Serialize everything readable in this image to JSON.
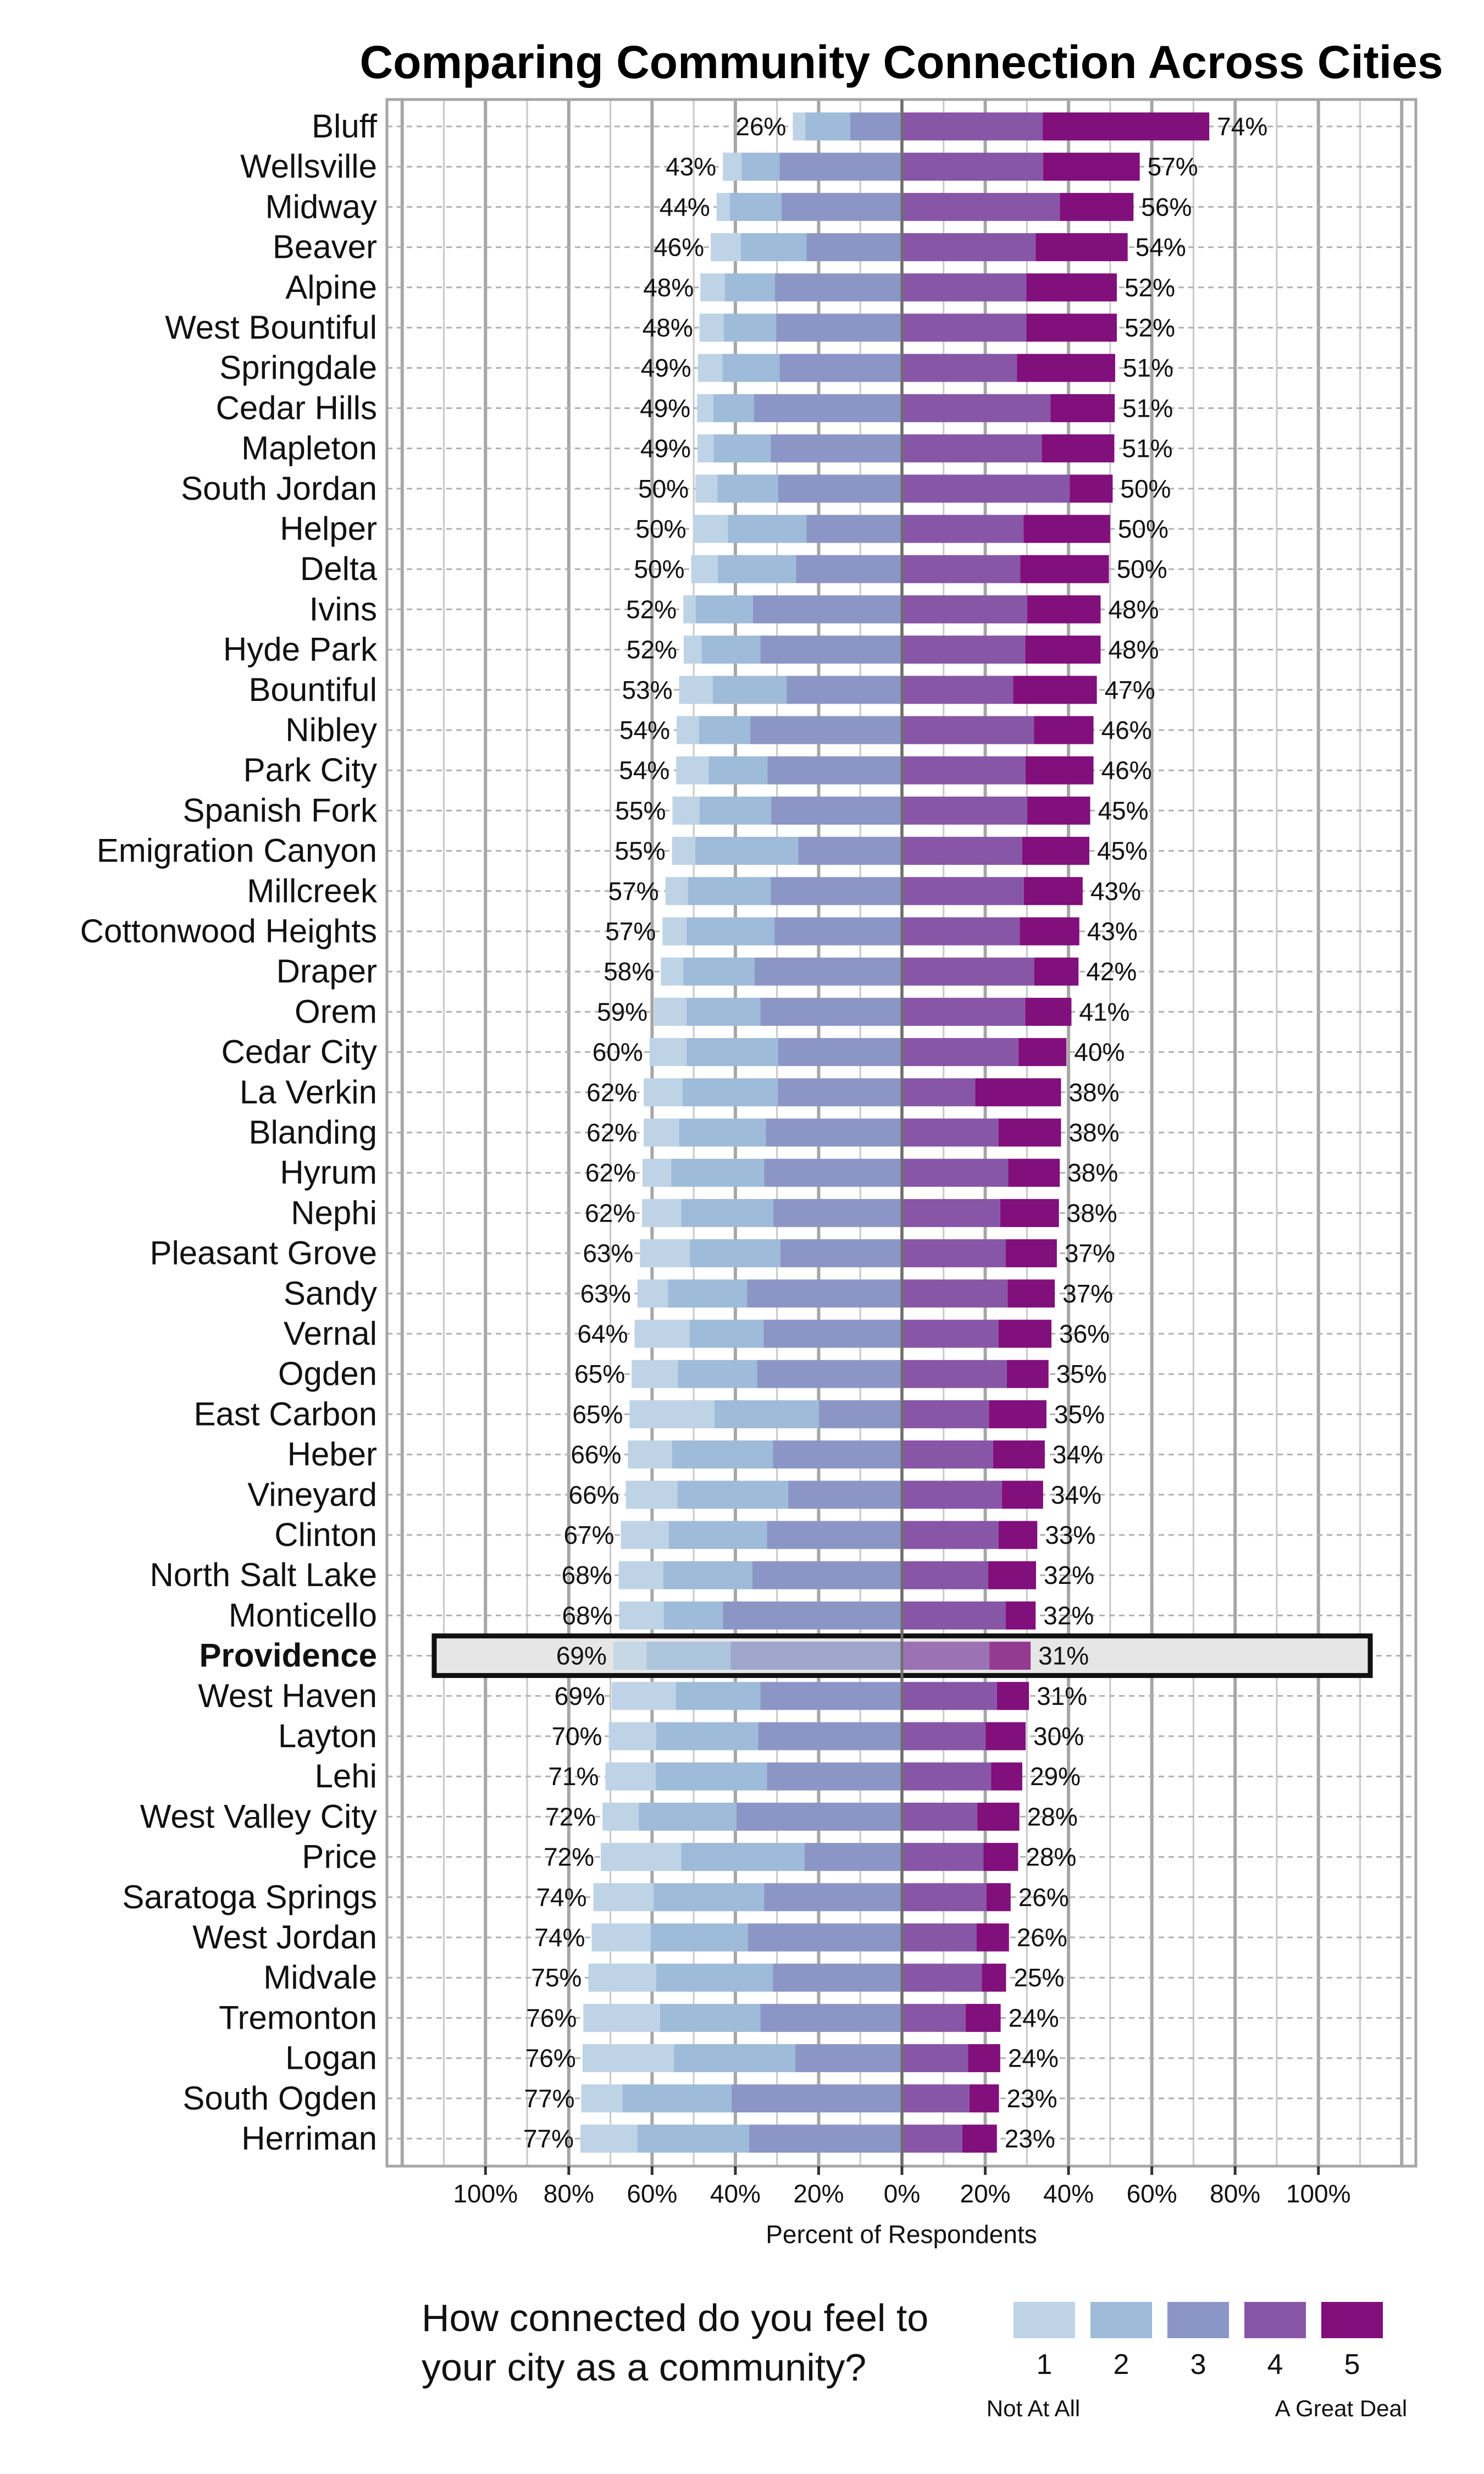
{
  "chart_data": {
    "type": "bar",
    "orientation": "horizontal-diverging-stacked",
    "title": "Comparing Community Connection Across Cities",
    "xlabel": "Percent of Respondents",
    "ylabel": "",
    "xlim": [
      -100,
      100
    ],
    "x_ticks": [
      "100%",
      "80%",
      "60%",
      "40%",
      "20%",
      "0%",
      "20%",
      "40%",
      "60%",
      "80%",
      "100%"
    ],
    "x_tick_values": [
      -100,
      -80,
      -60,
      -40,
      -20,
      0,
      20,
      40,
      60,
      80,
      100
    ],
    "grid": true,
    "legend": {
      "position": "bottom",
      "question_lines": [
        "How connected do you feel to",
        "your city as a community?"
      ],
      "levels": [
        "1",
        "2",
        "3",
        "4",
        "5"
      ],
      "low_anchor": "Not At All",
      "high_anchor": "A Great Deal"
    },
    "colors": [
      "#bed3e6",
      "#9ebbd9",
      "#8c96c6",
      "#8856a7",
      "#810f7c"
    ],
    "highlight": {
      "city": "Providence",
      "box_fill": "#e6e6e6",
      "box_stroke": "#111111"
    },
    "series_note_levels": [
      "1",
      "2",
      "3",
      "4",
      "5"
    ],
    "rows": [
      {
        "city": "Bluff",
        "values": [
          3.0,
          10.8,
          12.4,
          33.8,
          40.0
        ],
        "neg_label": "26%",
        "pos_label": "74%"
      },
      {
        "city": "Wellsville",
        "values": [
          4.5,
          9.1,
          29.4,
          33.9,
          23.2
        ],
        "neg_label": "43%",
        "pos_label": "57%"
      },
      {
        "city": "Midway",
        "values": [
          3.2,
          12.4,
          28.9,
          37.9,
          17.7
        ],
        "neg_label": "44%",
        "pos_label": "56%"
      },
      {
        "city": "Beaver",
        "values": [
          7.2,
          15.8,
          22.9,
          32.1,
          22.1
        ],
        "neg_label": "46%",
        "pos_label": "54%"
      },
      {
        "city": "Alpine",
        "values": [
          5.9,
          12.0,
          30.5,
          29.9,
          21.7
        ],
        "neg_label": "48%",
        "pos_label": "52%"
      },
      {
        "city": "West Bountiful",
        "values": [
          5.8,
          12.6,
          30.2,
          29.9,
          21.7
        ],
        "neg_label": "48%",
        "pos_label": "52%"
      },
      {
        "city": "Springdale",
        "values": [
          5.9,
          13.7,
          29.4,
          27.6,
          23.6
        ],
        "neg_label": "49%",
        "pos_label": "51%"
      },
      {
        "city": "Cedar Hills",
        "values": [
          3.9,
          9.8,
          35.5,
          35.7,
          15.4
        ],
        "neg_label": "49%",
        "pos_label": "51%"
      },
      {
        "city": "Mapleton",
        "values": [
          3.9,
          13.7,
          31.5,
          33.6,
          17.4
        ],
        "neg_label": "49%",
        "pos_label": "51%"
      },
      {
        "city": "South Jordan",
        "values": [
          5.3,
          14.6,
          29.7,
          40.3,
          10.3
        ],
        "neg_label": "50%",
        "pos_label": "50%"
      },
      {
        "city": "Helper",
        "values": [
          8.4,
          18.9,
          22.9,
          29.2,
          20.8
        ],
        "neg_label": "50%",
        "pos_label": "50%"
      },
      {
        "city": "Delta",
        "values": [
          6.4,
          18.8,
          25.4,
          28.4,
          21.3
        ],
        "neg_label": "50%",
        "pos_label": "50%"
      },
      {
        "city": "Ivins",
        "values": [
          3.0,
          13.7,
          35.8,
          30.1,
          17.6
        ],
        "neg_label": "52%",
        "pos_label": "48%"
      },
      {
        "city": "Hyde Park",
        "values": [
          4.3,
          14.1,
          34.0,
          29.6,
          18.1
        ],
        "neg_label": "52%",
        "pos_label": "48%"
      },
      {
        "city": "Bountiful",
        "values": [
          8.1,
          17.7,
          27.7,
          26.7,
          20.1
        ],
        "neg_label": "53%",
        "pos_label": "47%"
      },
      {
        "city": "Nibley",
        "values": [
          5.4,
          12.3,
          36.4,
          31.7,
          14.3
        ],
        "neg_label": "54%",
        "pos_label": "46%"
      },
      {
        "city": "Park City",
        "values": [
          7.8,
          14.1,
          32.3,
          29.7,
          16.3
        ],
        "neg_label": "54%",
        "pos_label": "46%"
      },
      {
        "city": "Spanish Fork",
        "values": [
          6.5,
          17.2,
          31.4,
          30.1,
          15.1
        ],
        "neg_label": "55%",
        "pos_label": "45%"
      },
      {
        "city": "Emigration Canyon",
        "values": [
          5.6,
          24.7,
          24.9,
          28.9,
          16.1
        ],
        "neg_label": "55%",
        "pos_label": "45%"
      },
      {
        "city": "Millcreek",
        "values": [
          5.4,
          19.9,
          31.5,
          29.3,
          14.1
        ],
        "neg_label": "57%",
        "pos_label": "43%"
      },
      {
        "city": "Cottonwood Heights",
        "values": [
          5.8,
          21.1,
          30.6,
          28.3,
          14.3
        ],
        "neg_label": "57%",
        "pos_label": "43%"
      },
      {
        "city": "Draper",
        "values": [
          5.4,
          17.1,
          35.4,
          31.8,
          10.6
        ],
        "neg_label": "58%",
        "pos_label": "42%"
      },
      {
        "city": "Orem",
        "values": [
          7.8,
          17.7,
          34.0,
          29.6,
          11.1
        ],
        "neg_label": "59%",
        "pos_label": "41%"
      },
      {
        "city": "Cedar City",
        "values": [
          8.9,
          22.0,
          29.7,
          28.0,
          11.5
        ],
        "neg_label": "60%",
        "pos_label": "40%"
      },
      {
        "city": "La Verkin",
        "values": [
          9.3,
          22.9,
          29.8,
          17.6,
          20.6
        ],
        "neg_label": "62%",
        "pos_label": "38%"
      },
      {
        "city": "Blanding",
        "values": [
          8.5,
          20.8,
          32.7,
          23.2,
          15.0
        ],
        "neg_label": "62%",
        "pos_label": "38%"
      },
      {
        "city": "Hyrum",
        "values": [
          6.9,
          22.3,
          33.1,
          25.5,
          12.4
        ],
        "neg_label": "62%",
        "pos_label": "38%"
      },
      {
        "city": "Nephi",
        "values": [
          9.4,
          22.1,
          30.9,
          23.6,
          14.1
        ],
        "neg_label": "62%",
        "pos_label": "38%"
      },
      {
        "city": "Pleasant Grove",
        "values": [
          12.0,
          21.7,
          29.2,
          24.9,
          12.3
        ],
        "neg_label": "63%",
        "pos_label": "37%"
      },
      {
        "city": "Sandy",
        "values": [
          7.3,
          19.0,
          37.2,
          25.4,
          11.3
        ],
        "neg_label": "63%",
        "pos_label": "37%"
      },
      {
        "city": "Vernal",
        "values": [
          13.2,
          17.8,
          33.2,
          23.2,
          12.7
        ],
        "neg_label": "64%",
        "pos_label": "36%"
      },
      {
        "city": "Ogden",
        "values": [
          11.1,
          19.0,
          34.8,
          25.2,
          10.0
        ],
        "neg_label": "65%",
        "pos_label": "35%"
      },
      {
        "city": "East Carbon",
        "values": [
          20.4,
          25.1,
          19.9,
          20.9,
          13.8
        ],
        "neg_label": "65%",
        "pos_label": "35%"
      },
      {
        "city": "Heber",
        "values": [
          10.6,
          24.2,
          31.0,
          21.9,
          12.4
        ],
        "neg_label": "66%",
        "pos_label": "34%"
      },
      {
        "city": "Vineyard",
        "values": [
          12.4,
          26.6,
          27.3,
          24.0,
          9.9
        ],
        "neg_label": "66%",
        "pos_label": "34%"
      },
      {
        "city": "Clinton",
        "values": [
          11.5,
          23.6,
          32.4,
          23.2,
          9.3
        ],
        "neg_label": "67%",
        "pos_label": "33%"
      },
      {
        "city": "North Salt Lake",
        "values": [
          10.7,
          21.4,
          35.9,
          20.7,
          11.5
        ],
        "neg_label": "68%",
        "pos_label": "32%"
      },
      {
        "city": "Monticello",
        "values": [
          10.7,
          14.2,
          43.0,
          24.9,
          7.2
        ],
        "neg_label": "68%",
        "pos_label": "32%"
      },
      {
        "city": "Providence",
        "values": [
          8.0,
          20.2,
          41.1,
          21.0,
          9.9
        ],
        "neg_label": "69%",
        "pos_label": "31%"
      },
      {
        "city": "West Haven",
        "values": [
          15.4,
          20.3,
          34.0,
          22.8,
          7.7
        ],
        "neg_label": "69%",
        "pos_label": "31%"
      },
      {
        "city": "Layton",
        "values": [
          11.4,
          24.5,
          34.5,
          20.1,
          9.6
        ],
        "neg_label": "70%",
        "pos_label": "30%"
      },
      {
        "city": "Lehi",
        "values": [
          12.1,
          26.7,
          32.4,
          21.4,
          7.5
        ],
        "neg_label": "71%",
        "pos_label": "29%"
      },
      {
        "city": "West Valley City",
        "values": [
          8.7,
          23.5,
          39.7,
          18.1,
          10.1
        ],
        "neg_label": "72%",
        "pos_label": "28%"
      },
      {
        "city": "Price",
        "values": [
          19.3,
          29.6,
          23.4,
          19.6,
          8.3
        ],
        "neg_label": "72%",
        "pos_label": "28%"
      },
      {
        "city": "Saratoga Springs",
        "values": [
          14.5,
          26.5,
          33.1,
          20.3,
          5.8
        ],
        "neg_label": "74%",
        "pos_label": "26%"
      },
      {
        "city": "West Jordan",
        "values": [
          14.2,
          23.3,
          37.0,
          17.9,
          7.8
        ],
        "neg_label": "74%",
        "pos_label": "26%"
      },
      {
        "city": "Midvale",
        "values": [
          16.3,
          28.0,
          31.0,
          19.2,
          5.8
        ],
        "neg_label": "75%",
        "pos_label": "25%"
      },
      {
        "city": "Tremonton",
        "values": [
          18.4,
          24.1,
          34.0,
          15.3,
          8.4
        ],
        "neg_label": "76%",
        "pos_label": "24%"
      },
      {
        "city": "Logan",
        "values": [
          22.0,
          29.1,
          25.6,
          15.9,
          7.7
        ],
        "neg_label": "76%",
        "pos_label": "24%"
      },
      {
        "city": "South Ogden",
        "values": [
          9.9,
          26.2,
          40.9,
          16.2,
          7.1
        ],
        "neg_label": "77%",
        "pos_label": "23%"
      },
      {
        "city": "Herriman",
        "values": [
          13.7,
          26.8,
          36.7,
          14.5,
          8.3
        ],
        "neg_label": "77%",
        "pos_label": "23%"
      }
    ]
  }
}
